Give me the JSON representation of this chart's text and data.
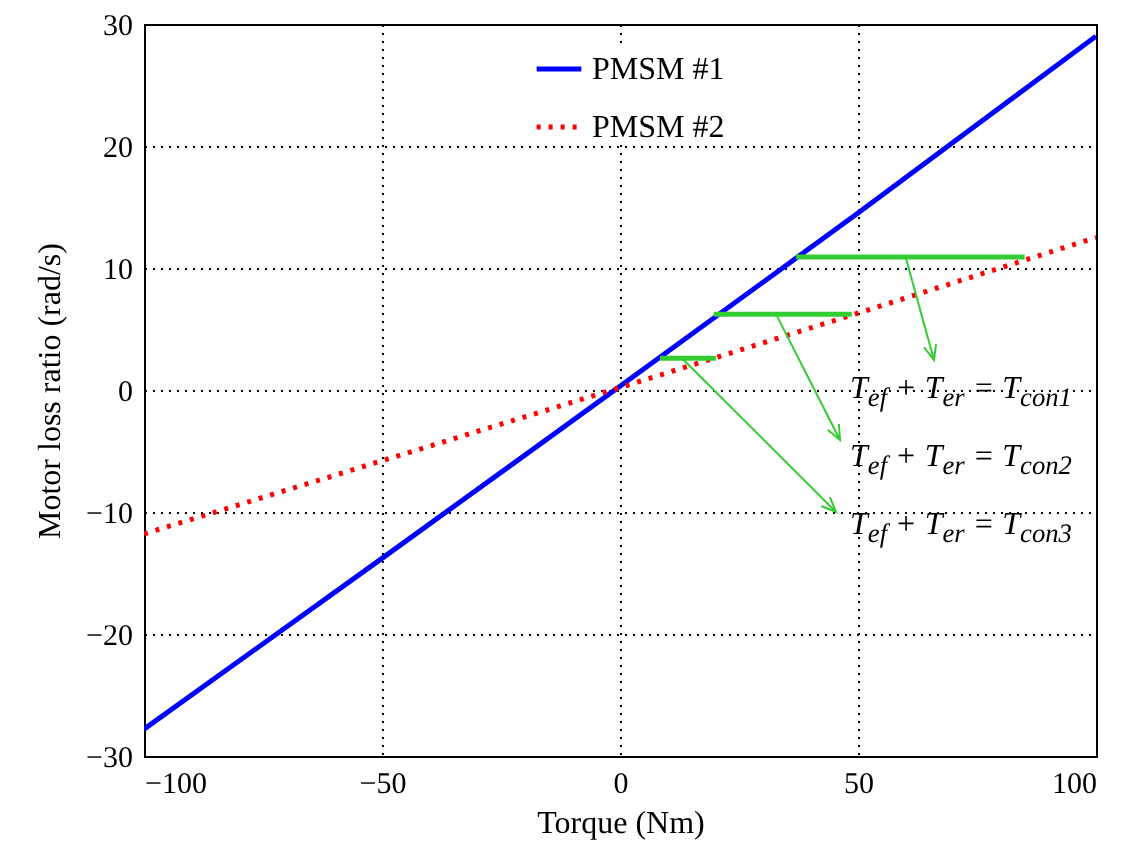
{
  "chart_data": {
    "type": "line",
    "xlabel": "Torque (Nm)",
    "ylabel": "Motor loss ratio (rad/s)",
    "x": [
      -100,
      -50,
      0,
      50,
      100
    ],
    "series": [
      {
        "name": "PMSM #1",
        "color": "#0000ff",
        "line_style": "solid",
        "values": [
          -27.8,
          -13.8,
          0.3,
          14.5,
          29
        ]
      },
      {
        "name": "PMSM #2",
        "color": "#ff0000",
        "line_style": "dotted",
        "values": [
          -11.8,
          -5.8,
          0.2,
          6.3,
          12.5
        ]
      },
      {
        "color": "#33cc33",
        "line_style": "solid",
        "x": [
          37,
          85
        ],
        "values": [
          10.9,
          10.9
        ]
      },
      {
        "color": "#33cc33",
        "line_style": "solid",
        "x": [
          19.7,
          48.7
        ],
        "values": [
          6.2,
          6.2
        ]
      },
      {
        "color": "#33cc33",
        "line_style": "solid",
        "x": [
          8.4,
          20.2
        ],
        "values": [
          2.6,
          2.6
        ]
      }
    ],
    "xlim": [
      -100,
      100
    ],
    "xticks": [
      -100,
      -50,
      0,
      50,
      100
    ],
    "ylim": [
      -30,
      30
    ],
    "yticks": [
      -30,
      -20,
      -10,
      0,
      10,
      20,
      30
    ],
    "grid": true,
    "legend": "top",
    "annotations": [
      {
        "text": "T$_{ef}$ + T$_{er}$ = T$_{con1}$",
        "x": 60,
        "y": 10.9
      },
      {
        "text": "T$_{ef}$ + T$_{er}$ = T$_{con2}$",
        "x": 32.8,
        "y": 6.2
      },
      {
        "text": "T$_{ef}$ + T$_{er}$ = T$_{con3}$",
        "x": 13,
        "y": 2.6
      }
    ]
  }
}
